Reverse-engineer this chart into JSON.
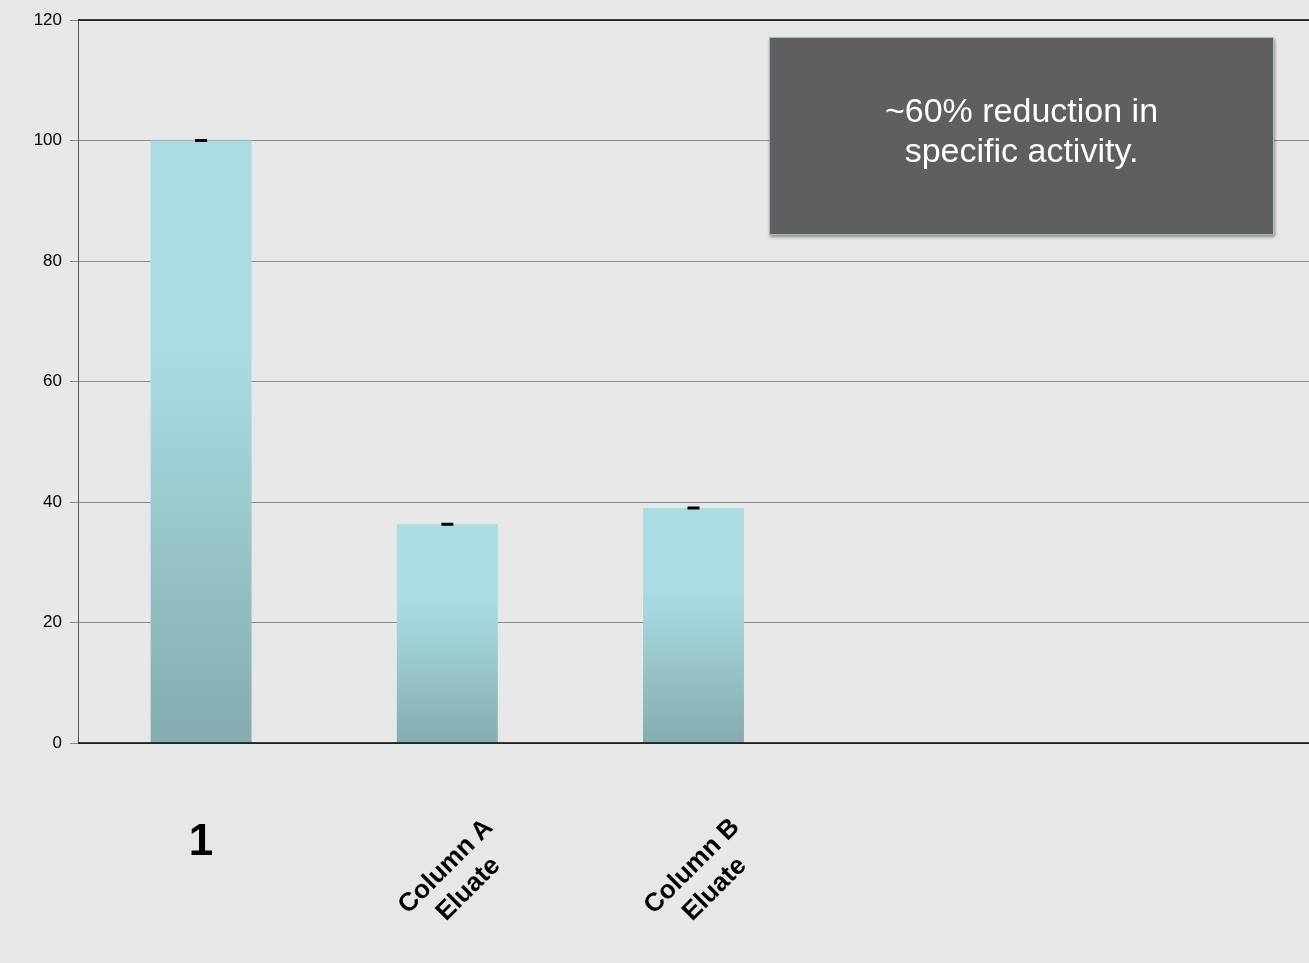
{
  "chart_data": {
    "type": "bar",
    "categories": [
      "1",
      "Column A Eluate",
      "Column B Eluate",
      null,
      null
    ],
    "values": [
      100,
      36.3,
      39,
      null,
      null
    ],
    "errors": [
      0,
      0,
      0,
      null,
      null
    ],
    "color": "#a9dde2",
    "ylim": [
      0,
      120
    ],
    "yticks": [
      0,
      20,
      40,
      60,
      80,
      100,
      120
    ],
    "grid": "y",
    "legend": false,
    "annotations": [
      "~60% reduction in specific activity."
    ]
  }
}
